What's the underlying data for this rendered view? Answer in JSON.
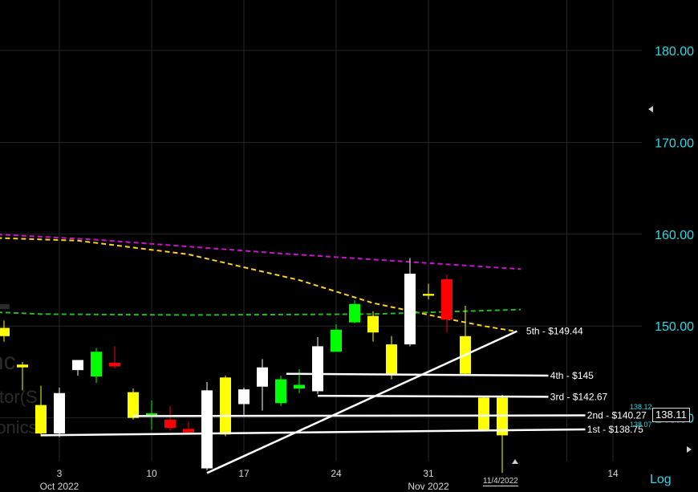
{
  "chart_data": {
    "type": "candlestick",
    "ylim": [
      135.25,
      185.5
    ],
    "price_scale": "linear",
    "grid": true,
    "y_ticks": [
      140,
      150,
      160,
      170,
      180
    ],
    "y_tick_labels": [
      "140.00",
      "150.00",
      "160.00",
      "170.00",
      "180.00"
    ],
    "x_ticks": [
      {
        "label": "3",
        "bar": 3
      },
      {
        "label": "10",
        "bar": 8
      },
      {
        "label": "17",
        "bar": 13
      },
      {
        "label": "24",
        "bar": 18
      },
      {
        "label": "31",
        "bar": 23
      },
      {
        "label": "14",
        "bar": 33
      }
    ],
    "month_labels": [
      {
        "label": "Oct 2022",
        "bar": 3
      },
      {
        "label": "Nov 2022",
        "bar": 23
      }
    ],
    "candles": [
      {
        "bar": 0,
        "open": 148.9,
        "close": 149.8,
        "high": 150.6,
        "low": 148.3,
        "color": "#ffff00"
      },
      {
        "bar": 1,
        "open": 145.5,
        "close": 145.8,
        "high": 146.1,
        "low": 143.0,
        "color": "#ffff00"
      },
      {
        "bar": 2,
        "open": 141.4,
        "close": 138.3,
        "high": 143.5,
        "low": 138.0,
        "color": "#ffff00"
      },
      {
        "bar": 3,
        "open": 138.3,
        "close": 142.7,
        "high": 143.3,
        "low": 137.9,
        "color": "#ffffff"
      },
      {
        "bar": 4,
        "open": 145.2,
        "close": 146.3,
        "high": 146.3,
        "low": 144.6,
        "color": "#ffffff"
      },
      {
        "bar": 5,
        "open": 144.5,
        "close": 147.2,
        "high": 147.6,
        "low": 143.8,
        "color": "#00ff00"
      },
      {
        "bar": 6,
        "open": 146.0,
        "close": 145.6,
        "high": 147.8,
        "low": 145.4,
        "color": "#ff0000"
      },
      {
        "bar": 7,
        "open": 142.8,
        "close": 140.0,
        "high": 143.2,
        "low": 139.8,
        "color": "#ffff00"
      },
      {
        "bar": 8,
        "open": 140.1,
        "close": 140.5,
        "high": 141.9,
        "low": 138.7,
        "color": "#00ff00"
      },
      {
        "bar": 9,
        "open": 139.8,
        "close": 138.9,
        "high": 141.3,
        "low": 138.6,
        "color": "#ff0000"
      },
      {
        "bar": 10,
        "open": 138.8,
        "close": 138.4,
        "high": 139.6,
        "low": 138.3,
        "color": "#ff0000"
      },
      {
        "bar": 11,
        "open": 134.5,
        "close": 143.0,
        "high": 143.9,
        "low": 134.3,
        "color": "#ffffff"
      },
      {
        "bar": 12,
        "open": 144.4,
        "close": 138.2,
        "high": 144.6,
        "low": 138.0,
        "color": "#ffff00"
      },
      {
        "bar": 13,
        "open": 141.5,
        "close": 143.1,
        "high": 143.3,
        "low": 140.3,
        "color": "#ffffff"
      },
      {
        "bar": 14,
        "open": 143.4,
        "close": 145.5,
        "high": 146.4,
        "low": 140.8,
        "color": "#ffffff"
      },
      {
        "bar": 15,
        "open": 141.6,
        "close": 144.2,
        "high": 144.6,
        "low": 141.3,
        "color": "#00ff00"
      },
      {
        "bar": 16,
        "open": 143.2,
        "close": 143.6,
        "high": 145.3,
        "low": 142.7,
        "color": "#00ff00"
      },
      {
        "bar": 17,
        "open": 142.9,
        "close": 147.8,
        "high": 148.8,
        "low": 142.6,
        "color": "#ffffff"
      },
      {
        "bar": 18,
        "open": 147.2,
        "close": 149.6,
        "high": 150.2,
        "low": 147.2,
        "color": "#00ff00"
      },
      {
        "bar": 19,
        "open": 150.4,
        "close": 152.4,
        "high": 152.8,
        "low": 150.3,
        "color": "#00ff00"
      },
      {
        "bar": 20,
        "open": 151.1,
        "close": 149.3,
        "high": 151.6,
        "low": 148.3,
        "color": "#ffff00"
      },
      {
        "bar": 21,
        "open": 148.0,
        "close": 144.7,
        "high": 148.9,
        "low": 144.2,
        "color": "#ffff00"
      },
      {
        "bar": 22,
        "open": 148.0,
        "close": 155.7,
        "high": 157.4,
        "low": 147.8,
        "color": "#ffffff"
      },
      {
        "bar": 23,
        "open": 153.3,
        "close": 153.5,
        "high": 154.6,
        "low": 152.9,
        "color": "#ffff00"
      },
      {
        "bar": 24,
        "open": 155.1,
        "close": 150.7,
        "high": 155.6,
        "low": 149.3,
        "color": "#ff0000"
      },
      {
        "bar": 25,
        "open": 148.9,
        "close": 144.8,
        "high": 152.2,
        "low": 144.7,
        "color": "#ffff00"
      },
      {
        "bar": 26,
        "open": 142.2,
        "close": 138.6,
        "high": 142.3,
        "low": 138.5,
        "color": "#ffff00"
      },
      {
        "bar": 27,
        "open": 142.2,
        "close": 138.1,
        "high": 142.5,
        "low": 134.0,
        "color": "#ffff00"
      }
    ],
    "moving_averages": [
      {
        "color": "#cc11cc",
        "style": "dashed",
        "points": [
          [
            -6,
            160.6
          ],
          [
            5,
            159.4
          ],
          [
            15,
            157.9
          ],
          [
            28,
            156.2
          ]
        ]
      },
      {
        "color": "#ffd21e",
        "style": "dashed",
        "points": [
          [
            -6,
            160.6
          ],
          [
            -2,
            159.7
          ],
          [
            4,
            159.3
          ],
          [
            10,
            157.8
          ],
          [
            16,
            155.0
          ],
          [
            20,
            152.5
          ],
          [
            24,
            150.8
          ],
          [
            26,
            150.0
          ],
          [
            27.8,
            149.4
          ]
        ]
      },
      {
        "color": "#22bb22",
        "style": "dashed",
        "points": [
          [
            -6,
            152.0
          ],
          [
            2,
            151.3
          ],
          [
            10,
            151.2
          ],
          [
            20,
            151.3
          ],
          [
            28,
            151.8
          ]
        ]
      }
    ],
    "trend_lines": [
      {
        "label": "5th - $149.44",
        "from": [
          11,
          134.0
        ],
        "to": [
          27.8,
          149.44
        ],
        "label_at": 28.3
      },
      {
        "label": "4th - $145",
        "from": [
          15.3,
          144.8
        ],
        "to": [
          29.5,
          144.6
        ],
        "label_at": 29.6
      },
      {
        "label": "3rd - $142.67",
        "from": [
          17,
          142.4
        ],
        "to": [
          29.5,
          142.3
        ],
        "label_at": 29.6
      },
      {
        "label": "2nd - $140.27",
        "from": [
          7,
          140.2
        ],
        "to": [
          31.5,
          140.27
        ],
        "label_at": 31.6
      },
      {
        "label": "1st - $138.75",
        "from": [
          2,
          138.1
        ],
        "to": [
          31.5,
          138.75
        ],
        "label_at": 31.6
      }
    ],
    "last_price": "138.11",
    "price_marker_high": "138.12",
    "price_marker_low": "138.07",
    "cursor_date": "11/4/2022"
  },
  "watermark": {
    "ticker": "L",
    "line1": "nc",
    "line2": "ctor(S",
    "line3": "ronics"
  },
  "scale_button": "Log"
}
